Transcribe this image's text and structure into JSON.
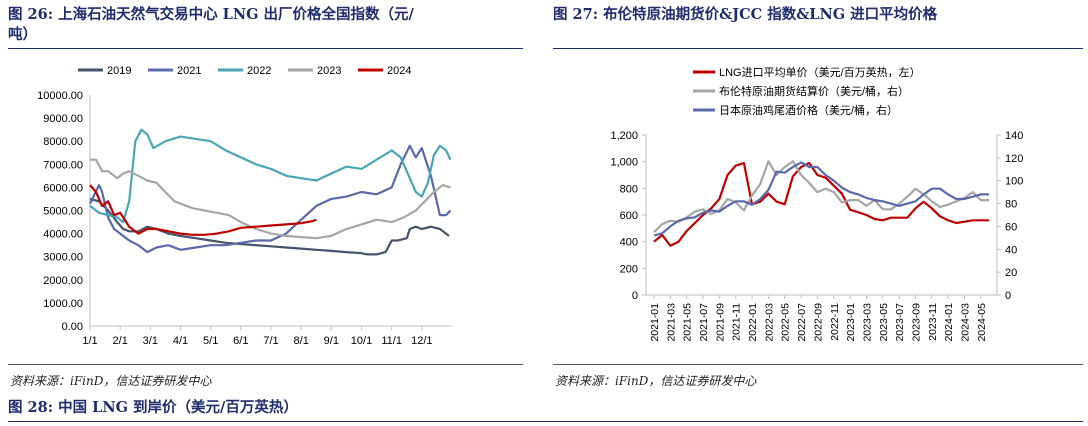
{
  "fig26": {
    "title_line1": "图 26: 上海石油天然气交易中心 LNG 出厂价格全国指数（元/",
    "title_line2": "吨）",
    "source": "资料来源：iFinD，信达证券研发中心"
  },
  "fig27": {
    "title": "图 27: 布伦特原油期货价&JCC 指数&LNG 进口平均价格",
    "source": "资料来源：iFinD，信达证券研发中心"
  },
  "fig28": {
    "title": "图 28: 中国 LNG 到岸价（美元/百万英热）"
  },
  "chart_data": [
    {
      "type": "line",
      "x_labels": [
        "1/1",
        "2/1",
        "3/1",
        "4/1",
        "5/1",
        "6/1",
        "7/1",
        "8/1",
        "9/1",
        "10/1",
        "11/1",
        "12/1"
      ],
      "y_tick_labels": [
        "0.00",
        "1000.00",
        "2000.00",
        "3000.00",
        "4000.00",
        "5000.00",
        "6000.00",
        "7000.00",
        "8000.00",
        "9000.00",
        "10000.00"
      ],
      "ylim": [
        0,
        10000
      ],
      "legend_position": "top",
      "series": [
        {
          "name": "2019",
          "color": "#44546a",
          "x": [
            0,
            0.3,
            0.6,
            0.9,
            1.1,
            1.3,
            1.6,
            1.9,
            2.2,
            2.6,
            3,
            3.5,
            4,
            4.5,
            5,
            5.5,
            6,
            6.5,
            7,
            7.5,
            8,
            8.5,
            9,
            9.2,
            9.5,
            9.8,
            10,
            10.2,
            10.5,
            10.6,
            10.8,
            11,
            11.3,
            11.6,
            11.9
          ],
          "y": [
            5500,
            5400,
            5000,
            4500,
            4200,
            4100,
            4100,
            4300,
            4200,
            4000,
            3900,
            3800,
            3700,
            3600,
            3550,
            3500,
            3450,
            3400,
            3350,
            3300,
            3250,
            3200,
            3150,
            3100,
            3100,
            3200,
            3700,
            3700,
            3800,
            4200,
            4300,
            4200,
            4300,
            4200,
            3900
          ]
        },
        {
          "name": "2021",
          "color": "#5a6aa8",
          "x": [
            0,
            0.3,
            0.4,
            0.6,
            0.8,
            1,
            1.3,
            1.6,
            1.9,
            2.2,
            2.6,
            3,
            3.5,
            4,
            4.5,
            5,
            5.5,
            6,
            6.5,
            7,
            7.5,
            8,
            8.5,
            9,
            9.5,
            10,
            10.3,
            10.6,
            10.8,
            11,
            11.3,
            11.6,
            11.8,
            11.95
          ],
          "y": [
            5300,
            6100,
            5800,
            4700,
            4200,
            4000,
            3700,
            3500,
            3200,
            3400,
            3500,
            3300,
            3400,
            3500,
            3500,
            3600,
            3700,
            3700,
            4000,
            4600,
            5200,
            5500,
            5600,
            5800,
            5700,
            6000,
            7000,
            7800,
            7300,
            7700,
            6500,
            4800,
            4800,
            5000
          ]
        },
        {
          "name": "2022",
          "color": "#4aa6b4",
          "x": [
            0,
            0.3,
            0.6,
            0.9,
            1.1,
            1.3,
            1.5,
            1.7,
            1.9,
            2.1,
            2.5,
            3,
            3.5,
            4,
            4.5,
            5,
            5.5,
            6,
            6.5,
            7,
            7.5,
            8,
            8.5,
            9,
            9.5,
            10,
            10.3,
            10.6,
            10.8,
            11,
            11.2,
            11.4,
            11.6,
            11.8,
            11.95
          ],
          "y": [
            5200,
            4900,
            4800,
            4700,
            4500,
            5400,
            8000,
            8500,
            8300,
            7700,
            8000,
            8200,
            8100,
            8000,
            7600,
            7300,
            7000,
            6800,
            6500,
            6400,
            6300,
            6600,
            6900,
            6800,
            7200,
            7600,
            7300,
            6400,
            5800,
            5600,
            6200,
            7400,
            7800,
            7600,
            7200
          ]
        },
        {
          "name": "2023",
          "color": "#a6a6a6",
          "x": [
            0,
            0.2,
            0.4,
            0.6,
            0.9,
            1.1,
            1.3,
            1.6,
            1.9,
            2.2,
            2.5,
            2.8,
            3,
            3.4,
            3.8,
            4.2,
            4.6,
            5,
            5.5,
            6,
            6.5,
            7,
            7.5,
            8,
            8.5,
            9,
            9.5,
            10,
            10.4,
            10.8,
            11.1,
            11.4,
            11.7,
            11.95
          ],
          "y": [
            7200,
            7200,
            6700,
            6700,
            6400,
            6600,
            6700,
            6500,
            6300,
            6200,
            5800,
            5400,
            5300,
            5100,
            5000,
            4900,
            4800,
            4500,
            4200,
            4000,
            3900,
            3850,
            3800,
            3900,
            4200,
            4400,
            4600,
            4500,
            4700,
            5000,
            5400,
            5800,
            6100,
            6000
          ]
        },
        {
          "name": "2024",
          "color": "#c00000",
          "x": [
            0,
            0.2,
            0.4,
            0.6,
            0.8,
            1,
            1.3,
            1.6,
            1.9,
            2.2,
            2.6,
            3,
            3.4,
            3.8,
            4.2,
            4.6,
            5,
            5.5,
            6,
            6.5,
            7,
            7.4,
            7.5
          ],
          "y": [
            6100,
            5800,
            5200,
            5400,
            4800,
            4900,
            4300,
            4000,
            4200,
            4200,
            4100,
            4000,
            3950,
            3950,
            4000,
            4100,
            4250,
            4300,
            4350,
            4400,
            4450,
            4550,
            4600
          ]
        }
      ]
    },
    {
      "type": "line",
      "x_labels": [
        "2021-01",
        "2021-03",
        "2021-05",
        "2021-07",
        "2021-09",
        "2021-11",
        "2022-01",
        "2022-03",
        "2022-05",
        "2022-07",
        "2022-09",
        "2022-11",
        "2023-01",
        "2023-03",
        "2023-05",
        "2023-07",
        "2023-09",
        "2023-11",
        "2024-01",
        "2024-03",
        "2024-05"
      ],
      "y_left_ticks": [
        "0",
        "200",
        "400",
        "600",
        "800",
        "1,000",
        "1,200"
      ],
      "y_right_ticks": [
        "0",
        "20",
        "40",
        "60",
        "80",
        "100",
        "120",
        "140"
      ],
      "ylim_left": [
        0,
        1200
      ],
      "ylim_right": [
        0,
        140
      ],
      "legend_position": "top",
      "series": [
        {
          "name": "LNG进口平均单价（美元/百万英热，左）",
          "axis": "left",
          "color": "#c00000",
          "x": [
            "2021-01",
            "2021-02",
            "2021-03",
            "2021-04",
            "2021-05",
            "2021-06",
            "2021-07",
            "2021-08",
            "2021-09",
            "2021-10",
            "2021-11",
            "2021-12",
            "2022-01",
            "2022-02",
            "2022-03",
            "2022-04",
            "2022-05",
            "2022-06",
            "2022-07",
            "2022-08",
            "2022-09",
            "2022-10",
            "2022-11",
            "2022-12",
            "2023-01",
            "2023-02",
            "2023-03",
            "2023-04",
            "2023-05",
            "2023-06",
            "2023-07",
            "2023-08",
            "2023-09",
            "2023-10",
            "2023-11",
            "2023-12",
            "2024-01",
            "2024-02",
            "2024-03",
            "2024-04",
            "2024-05",
            "2024-06"
          ],
          "y": [
            400,
            450,
            370,
            400,
            480,
            540,
            600,
            650,
            720,
            900,
            970,
            990,
            680,
            700,
            760,
            700,
            680,
            890,
            960,
            990,
            900,
            880,
            820,
            760,
            640,
            620,
            600,
            570,
            560,
            580,
            580,
            580,
            650,
            700,
            650,
            590,
            560,
            540,
            550,
            560,
            560,
            560
          ]
        },
        {
          "name": "布伦特原油期货结算价（美元/桶，右）",
          "axis": "right",
          "color": "#a6a6a6",
          "x": [
            "2021-01",
            "2021-02",
            "2021-03",
            "2021-04",
            "2021-05",
            "2021-06",
            "2021-07",
            "2021-08",
            "2021-09",
            "2021-10",
            "2021-11",
            "2021-12",
            "2022-01",
            "2022-02",
            "2022-03",
            "2022-04",
            "2022-05",
            "2022-06",
            "2022-07",
            "2022-08",
            "2022-09",
            "2022-10",
            "2022-11",
            "2022-12",
            "2023-01",
            "2023-02",
            "2023-03",
            "2023-04",
            "2023-05",
            "2023-06",
            "2023-07",
            "2023-08",
            "2023-09",
            "2023-10",
            "2023-11",
            "2023-12",
            "2024-01",
            "2024-02",
            "2024-03",
            "2024-04",
            "2024-05",
            "2024-06"
          ],
          "y": [
            55,
            62,
            65,
            64,
            68,
            73,
            75,
            71,
            74,
            84,
            81,
            74,
            87,
            97,
            117,
            105,
            112,
            117,
            105,
            98,
            90,
            93,
            90,
            81,
            83,
            83,
            78,
            83,
            75,
            75,
            80,
            86,
            93,
            88,
            82,
            77,
            79,
            82,
            85,
            90,
            83,
            83
          ]
        },
        {
          "name": "日本原油鸡尾酒价格（美元/桶，右）",
          "axis": "right",
          "color": "#5a6aa8",
          "x": [
            "2021-01",
            "2021-02",
            "2021-03",
            "2021-04",
            "2021-05",
            "2021-06",
            "2021-07",
            "2021-08",
            "2021-09",
            "2021-10",
            "2021-11",
            "2021-12",
            "2022-01",
            "2022-02",
            "2022-03",
            "2022-04",
            "2022-05",
            "2022-06",
            "2022-07",
            "2022-08",
            "2022-09",
            "2022-10",
            "2022-11",
            "2022-12",
            "2023-01",
            "2023-02",
            "2023-03",
            "2023-04",
            "2023-05",
            "2023-06",
            "2023-07",
            "2023-08",
            "2023-09",
            "2023-10",
            "2023-11",
            "2023-12",
            "2024-01",
            "2024-02",
            "2024-03",
            "2024-04",
            "2024-05",
            "2024-06"
          ],
          "y": [
            52,
            54,
            60,
            65,
            67,
            68,
            72,
            74,
            73,
            78,
            82,
            82,
            79,
            84,
            92,
            108,
            107,
            112,
            116,
            112,
            112,
            105,
            100,
            94,
            90,
            88,
            85,
            83,
            82,
            80,
            78,
            80,
            82,
            88,
            93,
            93,
            88,
            84,
            84,
            86,
            88,
            88
          ]
        }
      ]
    }
  ]
}
